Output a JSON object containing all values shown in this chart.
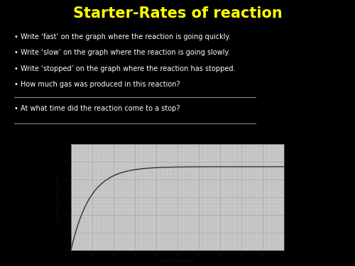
{
  "title": "Starter-Rates of reaction",
  "title_color": "#FFFF00",
  "background_color": "#000000",
  "text_color": "#FFFFFF",
  "bullet_points": [
    "Write ‘fast’ on the graph where the reaction is going quickly.",
    "Write ‘slow’ on the graph where the reaction is going slowly.",
    "Write ‘stopped’ on the graph where the reaction has stopped.",
    "How much gas was produced in this reaction?"
  ],
  "bullet_point2": "At what time did the reaction come to a stop?",
  "graph_bg": "#C8C8C8",
  "graph_line_color": "#333333",
  "xlabel": "time (seconds)",
  "ylabel": "volume of gas (cm³)",
  "xlim": [
    0,
    100
  ],
  "ylim": [
    0,
    60
  ],
  "xticks": [
    0,
    10,
    20,
    30,
    40,
    50,
    60,
    70,
    80,
    90,
    100
  ],
  "yticks": [
    0,
    10,
    20,
    30,
    40,
    50,
    60
  ],
  "curve_max": 47,
  "tau": 9
}
